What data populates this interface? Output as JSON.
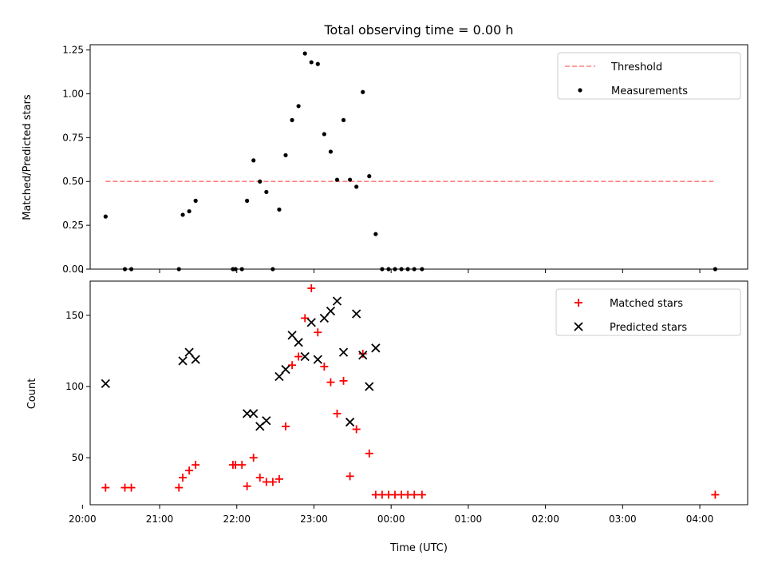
{
  "title": "Total observing time = 0.00 h",
  "chart_data": [
    {
      "type": "scatter",
      "ylabel": "Matched/Predicted stars",
      "xlim": [
        20.1,
        4.62
      ],
      "ylim": [
        0,
        1.28
      ],
      "yticks": [
        0.0,
        0.25,
        0.5,
        0.75,
        1.0,
        1.25
      ],
      "ytick_labels": [
        "0.00",
        "0.25",
        "0.50",
        "0.75",
        "1.00",
        "1.25"
      ],
      "legend": {
        "placement": "top-right",
        "entries": [
          "Threshold",
          "Measurements"
        ]
      },
      "threshold": {
        "name": "Threshold",
        "value": 0.5,
        "x_range": [
          "20:18",
          "04:12"
        ],
        "color": "#ff7f7f"
      },
      "series": [
        {
          "name": "Measurements",
          "color": "#000000",
          "points": [
            [
              "20:18",
              0.3
            ],
            [
              "20:33",
              0.0
            ],
            [
              "20:38",
              0.0
            ],
            [
              "21:15",
              0.0
            ],
            [
              "21:18",
              0.31
            ],
            [
              "21:23",
              0.33
            ],
            [
              "21:28",
              0.39
            ],
            [
              "21:57",
              0.0
            ],
            [
              "21:59",
              0.0
            ],
            [
              "22:04",
              0.0
            ],
            [
              "22:08",
              0.39
            ],
            [
              "22:13",
              0.62
            ],
            [
              "22:18",
              0.5
            ],
            [
              "22:23",
              0.44
            ],
            [
              "22:28",
              0.0
            ],
            [
              "22:33",
              0.34
            ],
            [
              "22:38",
              0.65
            ],
            [
              "22:43",
              0.85
            ],
            [
              "22:48",
              0.93
            ],
            [
              "22:53",
              1.23
            ],
            [
              "22:58",
              1.18
            ],
            [
              "23:03",
              1.17
            ],
            [
              "23:08",
              0.77
            ],
            [
              "23:13",
              0.67
            ],
            [
              "23:18",
              0.51
            ],
            [
              "23:23",
              0.85
            ],
            [
              "23:28",
              0.51
            ],
            [
              "23:33",
              0.47
            ],
            [
              "23:38",
              1.01
            ],
            [
              "23:43",
              0.53
            ],
            [
              "23:48",
              0.2
            ],
            [
              "23:53",
              0.0
            ],
            [
              "23:58",
              0.0
            ],
            [
              "00:03",
              0.0
            ],
            [
              "00:08",
              0.0
            ],
            [
              "00:13",
              0.0
            ],
            [
              "00:18",
              0.0
            ],
            [
              "00:24",
              0.0
            ],
            [
              "04:12",
              0.0
            ]
          ]
        }
      ]
    },
    {
      "type": "scatter",
      "xlabel": "Time (UTC)",
      "ylabel": "Count",
      "xlim": [
        20.1,
        4.62
      ],
      "ylim": [
        17,
        174
      ],
      "xticks": [
        "20:00",
        "21:00",
        "22:00",
        "23:00",
        "00:00",
        "01:00",
        "02:00",
        "03:00",
        "04:00"
      ],
      "yticks": [
        50,
        100,
        150
      ],
      "ytick_labels": [
        "50",
        "100",
        "150"
      ],
      "legend": {
        "placement": "top-right",
        "entries": [
          "Matched stars",
          "Predicted stars"
        ]
      },
      "series": [
        {
          "name": "Matched stars",
          "marker": "plus",
          "color": "#ff0000",
          "points": [
            [
              "20:18",
              29
            ],
            [
              "20:33",
              29
            ],
            [
              "20:38",
              29
            ],
            [
              "21:15",
              29
            ],
            [
              "21:18",
              36
            ],
            [
              "21:23",
              41
            ],
            [
              "21:28",
              45
            ],
            [
              "21:57",
              45
            ],
            [
              "21:59",
              45
            ],
            [
              "22:04",
              45
            ],
            [
              "22:08",
              30
            ],
            [
              "22:13",
              50
            ],
            [
              "22:18",
              36
            ],
            [
              "22:23",
              33
            ],
            [
              "22:28",
              33
            ],
            [
              "22:33",
              35
            ],
            [
              "22:38",
              72
            ],
            [
              "22:43",
              115
            ],
            [
              "22:48",
              121
            ],
            [
              "22:53",
              148
            ],
            [
              "22:58",
              169
            ],
            [
              "23:03",
              138
            ],
            [
              "23:08",
              114
            ],
            [
              "23:13",
              103
            ],
            [
              "23:18",
              81
            ],
            [
              "23:23",
              104
            ],
            [
              "23:28",
              37
            ],
            [
              "23:33",
              70
            ],
            [
              "23:38",
              123
            ],
            [
              "23:43",
              53
            ],
            [
              "23:48",
              24
            ],
            [
              "23:53",
              24
            ],
            [
              "23:58",
              24
            ],
            [
              "00:03",
              24
            ],
            [
              "00:08",
              24
            ],
            [
              "00:13",
              24
            ],
            [
              "00:18",
              24
            ],
            [
              "00:24",
              24
            ],
            [
              "04:12",
              24
            ]
          ]
        },
        {
          "name": "Predicted stars",
          "marker": "x",
          "color": "#000000",
          "points": [
            [
              "20:18",
              102
            ],
            [
              "21:18",
              118
            ],
            [
              "21:23",
              124
            ],
            [
              "21:28",
              119
            ],
            [
              "22:08",
              81
            ],
            [
              "22:13",
              81
            ],
            [
              "22:18",
              72
            ],
            [
              "22:23",
              76
            ],
            [
              "22:33",
              107
            ],
            [
              "22:38",
              112
            ],
            [
              "22:43",
              136
            ],
            [
              "22:48",
              131
            ],
            [
              "22:53",
              121
            ],
            [
              "22:58",
              145
            ],
            [
              "23:03",
              119
            ],
            [
              "23:08",
              148
            ],
            [
              "23:13",
              153
            ],
            [
              "23:18",
              160
            ],
            [
              "23:23",
              124
            ],
            [
              "23:28",
              75
            ],
            [
              "23:33",
              151
            ],
            [
              "23:38",
              122
            ],
            [
              "23:43",
              100
            ],
            [
              "23:48",
              127
            ]
          ]
        }
      ]
    }
  ]
}
